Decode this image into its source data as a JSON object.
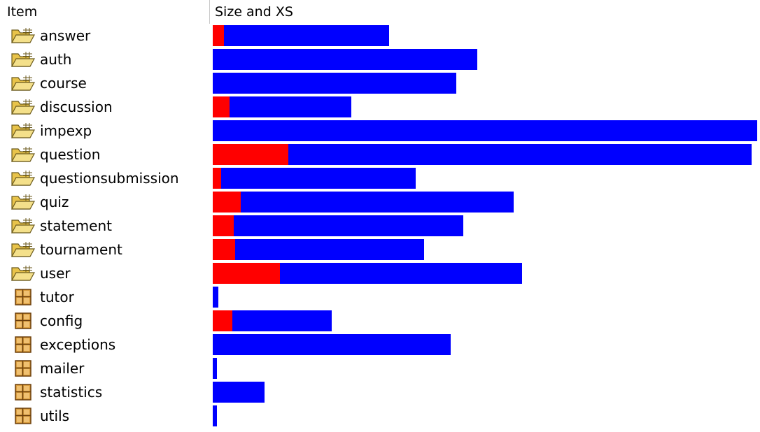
{
  "header": {
    "item": "Item",
    "size": "Size and XS"
  },
  "scale_max": 778,
  "colors": {
    "size": "#0000ff",
    "xs": "#ff0000"
  },
  "rows": [
    {
      "label": "answer",
      "icon": "open-folder-icon",
      "size": 252,
      "xs": 16
    },
    {
      "label": "auth",
      "icon": "open-folder-icon",
      "size": 378,
      "xs": 0
    },
    {
      "label": "course",
      "icon": "open-folder-icon",
      "size": 348,
      "xs": 0
    },
    {
      "label": "discussion",
      "icon": "open-folder-icon",
      "size": 198,
      "xs": 24
    },
    {
      "label": "impexp",
      "icon": "open-folder-icon",
      "size": 778,
      "xs": 0
    },
    {
      "label": "question",
      "icon": "open-folder-icon",
      "size": 770,
      "xs": 108
    },
    {
      "label": "questionsubmission",
      "icon": "open-folder-icon",
      "size": 290,
      "xs": 12
    },
    {
      "label": "quiz",
      "icon": "open-folder-icon",
      "size": 430,
      "xs": 40
    },
    {
      "label": "statement",
      "icon": "open-folder-icon",
      "size": 358,
      "xs": 30
    },
    {
      "label": "tournament",
      "icon": "open-folder-icon",
      "size": 302,
      "xs": 32
    },
    {
      "label": "user",
      "icon": "open-folder-icon",
      "size": 442,
      "xs": 96
    },
    {
      "label": "tutor",
      "icon": "grid-file-icon",
      "size": 8,
      "xs": 0
    },
    {
      "label": "config",
      "icon": "grid-file-icon",
      "size": 170,
      "xs": 28
    },
    {
      "label": "exceptions",
      "icon": "grid-file-icon",
      "size": 340,
      "xs": 0
    },
    {
      "label": "mailer",
      "icon": "grid-file-icon",
      "size": 6,
      "xs": 0
    },
    {
      "label": "statistics",
      "icon": "grid-file-icon",
      "size": 74,
      "xs": 0
    },
    {
      "label": "utils",
      "icon": "grid-file-icon",
      "size": 6,
      "xs": 0
    }
  ]
}
